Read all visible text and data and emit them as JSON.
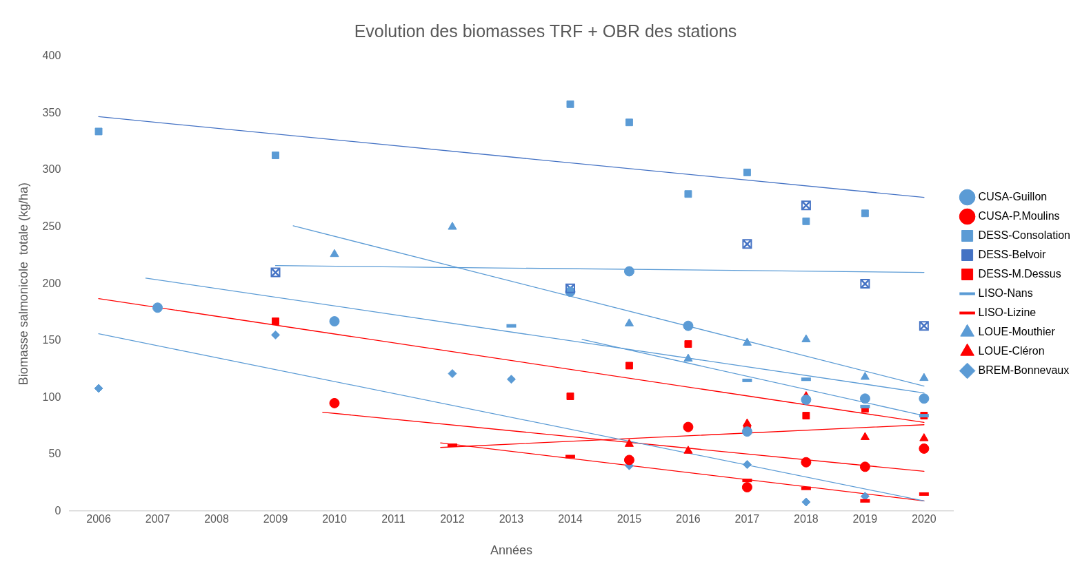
{
  "chart_data": {
    "type": "scatter",
    "title": "Evolution des biomasses TRF + OBR des stations",
    "xlabel": "Années",
    "ylabel": "Biomasse salmonicole  totale (kg/ha)",
    "xlim": [
      2005.5,
      2020.5
    ],
    "xticks": [
      2006,
      2007,
      2008,
      2009,
      2010,
      2011,
      2012,
      2013,
      2014,
      2015,
      2016,
      2017,
      2018,
      2019,
      2020
    ],
    "ylim": [
      0,
      400
    ],
    "yticks": [
      0,
      50,
      100,
      150,
      200,
      250,
      300,
      350,
      400
    ],
    "grid": false,
    "legend": "right",
    "series": [
      {
        "name": "CUSA-Guillon",
        "color": "#5b9bd5",
        "marker": "circle",
        "x": [
          2007,
          2010,
          2014,
          2015,
          2016,
          2017,
          2018,
          2019,
          2020
        ],
        "values": [
          179,
          167,
          193,
          211,
          163,
          70,
          98,
          99,
          99
        ]
      },
      {
        "name": "CUSA-P.Moulins",
        "color": "#ff0000",
        "marker": "circle",
        "x": [
          2010,
          2015,
          2016,
          2017,
          2018,
          2019,
          2020
        ],
        "values": [
          95,
          45,
          74,
          21,
          43,
          39,
          55
        ]
      },
      {
        "name": "DESS-Consolation",
        "color": "#5b9bd5",
        "marker": "square",
        "x": [
          2006,
          2009,
          2014,
          2015,
          2016,
          2017,
          2018,
          2019
        ],
        "values": [
          334,
          313,
          358,
          342,
          279,
          298,
          255,
          262
        ]
      },
      {
        "name": "DESS-Belvoir",
        "color": "#4472c4",
        "marker": "cross",
        "x": [
          2009,
          2014,
          2017,
          2018,
          2019,
          2020
        ],
        "values": [
          210,
          196,
          235,
          269,
          200,
          163
        ]
      },
      {
        "name": "DESS-M.Dessus",
        "color": "#ff0000",
        "marker": "square",
        "x": [
          2009,
          2014,
          2015,
          2016,
          2017,
          2018,
          2019,
          2020
        ],
        "values": [
          167,
          101,
          128,
          147,
          73,
          84,
          90,
          84
        ]
      },
      {
        "name": "LISO-Nans",
        "color": "#5b9bd5",
        "x": [
          2013,
          2017,
          2018,
          2019,
          2020
        ],
        "values": [
          163,
          115,
          116,
          92,
          84
        ]
      },
      {
        "name": "LISO-Lizine",
        "color": "#ff0000",
        "x": [
          2012,
          2014,
          2017,
          2018,
          2019,
          2020
        ],
        "values": [
          58,
          48,
          27,
          20,
          9,
          15
        ]
      },
      {
        "name": "LOUE-Mouthier",
        "color": "#5b9bd5",
        "marker": "triangle",
        "x": [
          2010,
          2012,
          2015,
          2016,
          2017,
          2018,
          2019,
          2020
        ],
        "values": [
          226,
          250,
          165,
          134,
          148,
          151,
          118,
          117
        ]
      },
      {
        "name": "LOUE-Cléron",
        "color": "#ff0000",
        "marker": "triangle",
        "x": [
          2015,
          2016,
          2017,
          2018,
          2019,
          2020
        ],
        "values": [
          59,
          53,
          77,
          101,
          65,
          64
        ]
      },
      {
        "name": "BREM-Bonnevaux",
        "color": "#5b9bd5",
        "marker": "diamond",
        "x": [
          2006,
          2009,
          2012,
          2013,
          2015,
          2017,
          2018,
          2019
        ],
        "values": [
          108,
          155,
          121,
          116,
          40,
          41,
          8,
          13
        ]
      },
      {
        "type": "line",
        "color": "#4472c4",
        "marker": "none",
        "x": [
          2006,
          2020
        ],
        "values": [
          347,
          276
        ]
      },
      {
        "type": "line",
        "color": "#5b9bd5",
        "marker": "none",
        "x": [
          2009.3,
          2020
        ],
        "values": [
          251,
          110
        ]
      },
      {
        "type": "line",
        "color": "#5b9bd5",
        "marker": "none",
        "x": [
          2009,
          2020
        ],
        "values": [
          216,
          210
        ]
      },
      {
        "type": "line",
        "color": "#5b9bd5",
        "marker": "none",
        "x": [
          2006.8,
          2020
        ],
        "values": [
          205,
          104
        ]
      },
      {
        "type": "line",
        "color": "#5b9bd5",
        "marker": "none",
        "x": [
          2014.2,
          2020
        ],
        "values": [
          151,
          84
        ]
      },
      {
        "type": "line",
        "color": "#ff0000",
        "marker": "none",
        "x": [
          2006,
          2020
        ],
        "values": [
          187,
          78
        ]
      },
      {
        "type": "line",
        "color": "#5b9bd5",
        "marker": "none",
        "x": [
          2006,
          2020
        ],
        "values": [
          156,
          9
        ]
      },
      {
        "type": "line",
        "color": "#ff0000",
        "marker": "none",
        "x": [
          2009.8,
          2020
        ],
        "values": [
          87,
          35
        ]
      },
      {
        "type": "line",
        "color": "#ff0000",
        "marker": "none",
        "x": [
          2011.8,
          2020
        ],
        "values": [
          56,
          76
        ]
      },
      {
        "type": "line",
        "color": "#ff0000",
        "marker": "none",
        "x": [
          2011.8,
          2020
        ],
        "values": [
          60,
          9
        ]
      }
    ]
  }
}
